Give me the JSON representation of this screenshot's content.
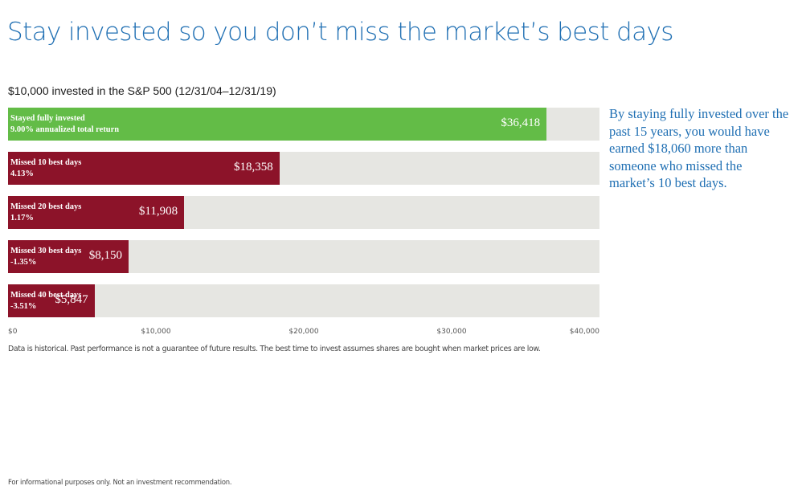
{
  "headline": "Stay invested so you don’t miss the market’s best days",
  "callout": "By staying fully invested over the past 15 years, you would have earned $18,060 more than someone who missed the market’s 10 best days.",
  "disclaimer": "Data is historical. Past performance is not a guarantee of future results. The best time to invest assumes shares are bought when market prices are low.",
  "footer": "For informational purposes only. Not an investment recommendation.",
  "colors": {
    "headline": "#1f6fb3",
    "green": "#63bc47",
    "red": "#8c1329",
    "track": "#e6e6e2"
  },
  "chart_data": {
    "type": "bar",
    "orientation": "horizontal",
    "title": "$10,000 invested in the S&P 500 (12/31/04–12/31/19)",
    "xlabel": "",
    "ylabel": "",
    "xlim": [
      0,
      40000
    ],
    "grid": false,
    "bars": [
      {
        "name": "Stayed fully invested",
        "subtitle": "9.00% annualized total return",
        "value": 36418,
        "value_label": "$36,418",
        "color": "green"
      },
      {
        "name": "Missed 10 best days",
        "subtitle": "4.13%",
        "value": 18358,
        "value_label": "$18,358",
        "color": "red"
      },
      {
        "name": "Missed 20 best days",
        "subtitle": "1.17%",
        "value": 11908,
        "value_label": "$11,908",
        "color": "red"
      },
      {
        "name": "Missed 30 best days",
        "subtitle": "-1.35%",
        "value": 8150,
        "value_label": "$8,150",
        "color": "red"
      },
      {
        "name": "Missed 40 best days",
        "subtitle": "-3.51%",
        "value": 5847,
        "value_label": "$5,847",
        "color": "red"
      }
    ],
    "ticks": [
      {
        "value": 0,
        "label": "$0"
      },
      {
        "value": 10000,
        "label": "$10,000"
      },
      {
        "value": 20000,
        "label": "$20,000"
      },
      {
        "value": 30000,
        "label": "$30,000"
      },
      {
        "value": 40000,
        "label": "$40,000"
      }
    ]
  }
}
